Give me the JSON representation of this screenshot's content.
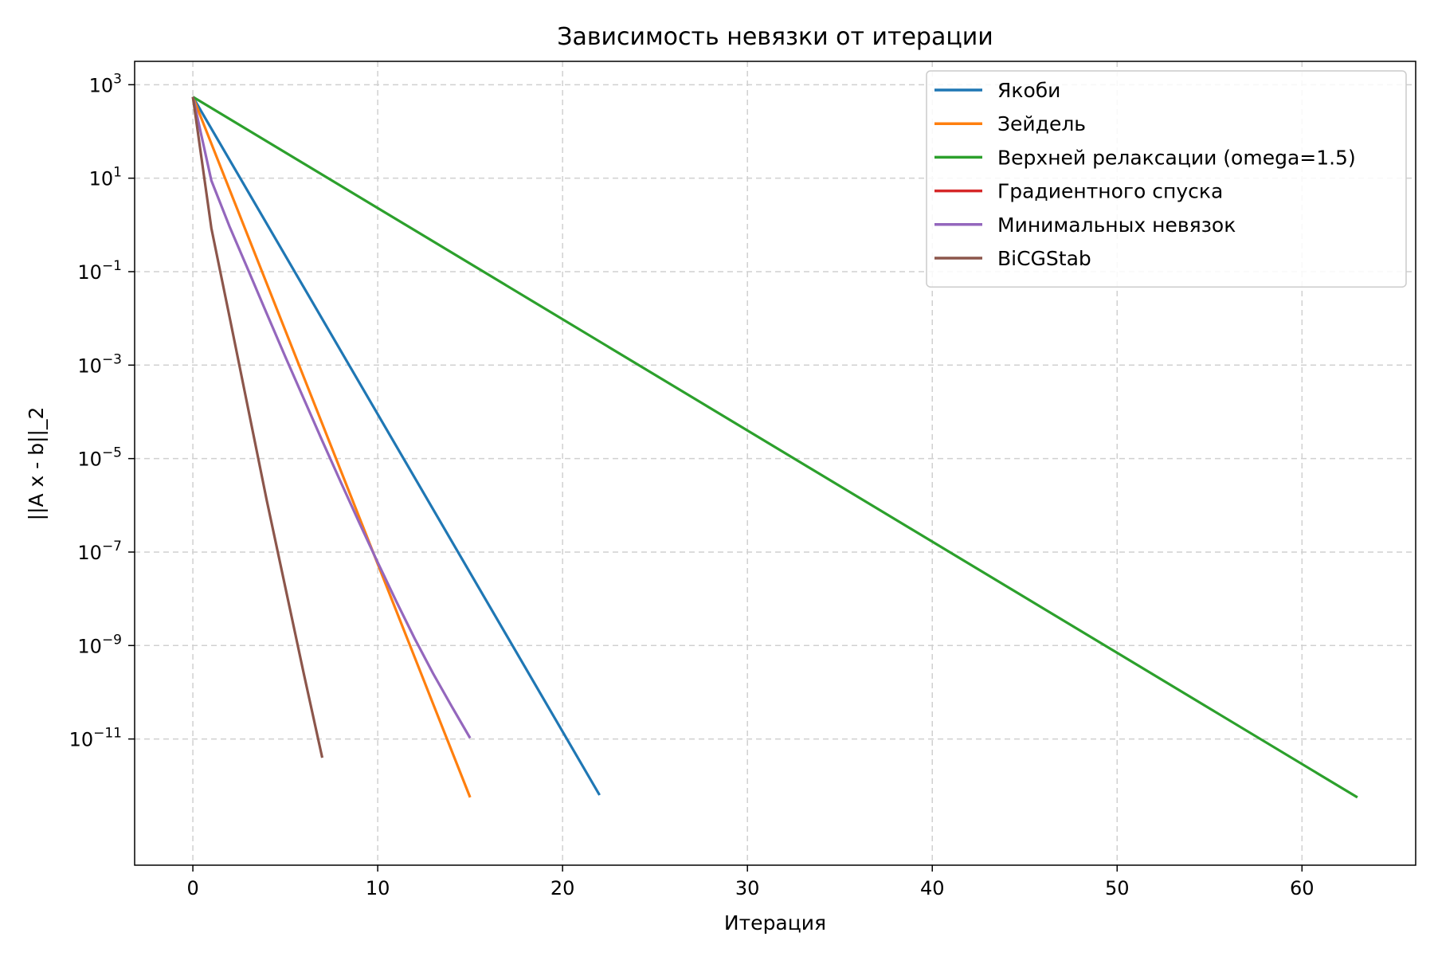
{
  "chart_data": {
    "type": "line",
    "title": "Зависимость невязки от итерации",
    "xlabel": "Итерация",
    "ylabel": "||A x - b||_2",
    "yscale": "log",
    "xlim": [
      -3.15,
      66.15
    ],
    "ylim_exp": [
      -13.7,
      3.5
    ],
    "xticks": [
      0,
      10,
      20,
      30,
      40,
      50,
      60
    ],
    "yticks": [
      {
        "base": "10",
        "exp": "3",
        "value": 3
      },
      {
        "base": "10",
        "exp": "1",
        "value": 1
      },
      {
        "base": "10",
        "exp": "−1",
        "value": -1
      },
      {
        "base": "10",
        "exp": "−3",
        "value": -3
      },
      {
        "base": "10",
        "exp": "−5",
        "value": -5
      },
      {
        "base": "10",
        "exp": "−7",
        "value": -7
      },
      {
        "base": "10",
        "exp": "−9",
        "value": -9
      },
      {
        "base": "10",
        "exp": "−11",
        "value": -11
      }
    ],
    "grid": true,
    "legend_position": "top-right",
    "series": [
      {
        "name": "Якоби",
        "color": "#1f77b4",
        "x": [
          0,
          22
        ],
        "log10_y": [
          2.74,
          -12.2
        ]
      },
      {
        "name": "Зейдель",
        "color": "#ff7f0e",
        "x": [
          0,
          15
        ],
        "log10_y": [
          2.74,
          -12.25
        ]
      },
      {
        "name": "Верхней релаксации (omega=1.5)",
        "color": "#2ca02c",
        "x": [
          0,
          63
        ],
        "log10_y": [
          2.74,
          -12.25
        ]
      },
      {
        "name": "Градиентного спуска",
        "color": "#d62728",
        "x": [],
        "log10_y": []
      },
      {
        "name": "Минимальных невязок",
        "color": "#9467bd",
        "x": [
          0,
          1,
          2,
          3,
          4,
          5,
          6,
          7,
          8,
          9,
          10,
          11,
          12,
          13,
          14,
          15
        ],
        "log10_y": [
          2.74,
          0.95,
          -0.05,
          -0.97,
          -1.9,
          -2.82,
          -3.72,
          -4.62,
          -5.5,
          -6.37,
          -7.22,
          -8.05,
          -8.85,
          -9.6,
          -10.3,
          -10.98
        ]
      },
      {
        "name": "BiCGStab",
        "color": "#8c564b",
        "x": [
          0,
          1,
          2,
          3,
          4,
          5,
          6,
          7
        ],
        "log10_y": [
          2.74,
          -0.07,
          -2.0,
          -3.95,
          -5.9,
          -7.75,
          -9.6,
          -11.4
        ]
      }
    ]
  }
}
